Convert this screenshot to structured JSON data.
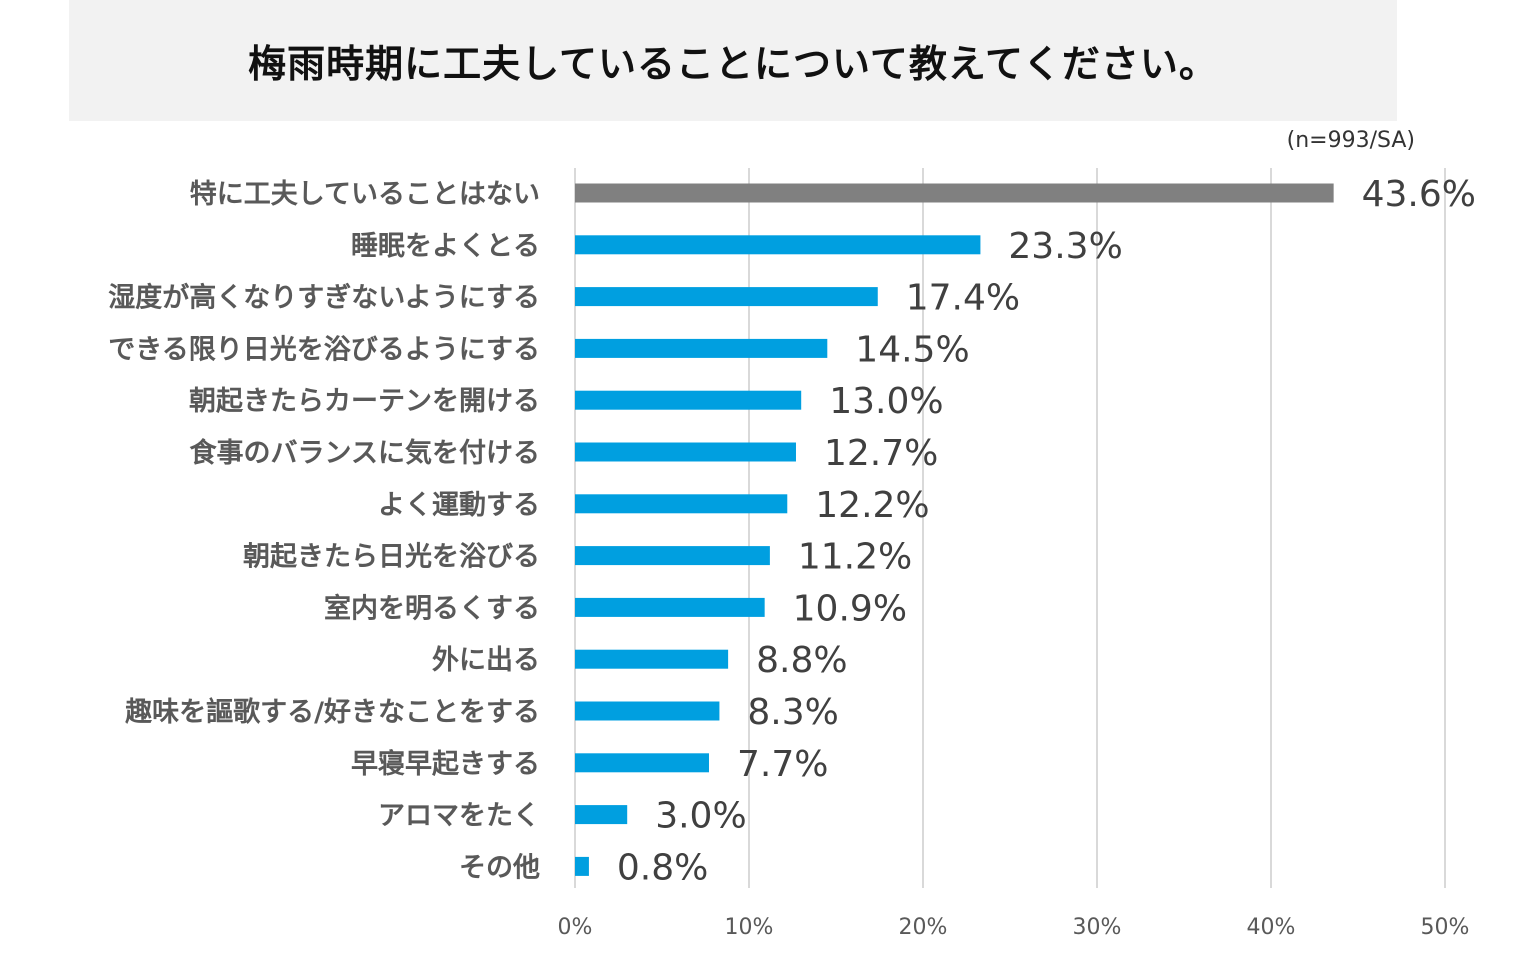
{
  "title": "梅雨時期に工夫していることについて教えてください。",
  "sample_note": "(n=993/SA)",
  "colors": {
    "highlight": "#808080",
    "bar": "#009fe0",
    "grid": "#d9d9d9"
  },
  "chart_data": {
    "type": "bar",
    "orientation": "horizontal",
    "title": "梅雨時期に工夫していることについて教えてください。",
    "categories": [
      "特に工夫していることはない",
      "睡眠をよくとる",
      "湿度が高くなりすぎないようにする",
      "できる限り日光を浴びるようにする",
      "朝起きたらカーテンを開ける",
      "食事のバランスに気を付ける",
      "よく運動する",
      "朝起きたら日光を浴びる",
      "室内を明るくする",
      "外に出る",
      "趣味を謳歌する/好きなことをする",
      "早寝早起きする",
      "アロマをたく",
      "その他"
    ],
    "values": [
      43.6,
      23.3,
      17.4,
      14.5,
      13.0,
      12.7,
      12.2,
      11.2,
      10.9,
      8.8,
      8.3,
      7.7,
      3.0,
      0.8
    ],
    "value_labels": [
      "43.6%",
      "23.3%",
      "17.4%",
      "14.5%",
      "13.0%",
      "12.7%",
      "12.2%",
      "11.2%",
      "10.9%",
      "8.8%",
      "8.3%",
      "7.7%",
      "3.0%",
      "0.8%"
    ],
    "highlight_index": 0,
    "xlim": [
      0,
      50
    ],
    "xticks": [
      0,
      10,
      20,
      30,
      40,
      50
    ],
    "xtick_labels": [
      "0%",
      "10%",
      "20%",
      "30%",
      "40%",
      "50%"
    ],
    "grid": true,
    "xlabel": "",
    "ylabel": ""
  }
}
